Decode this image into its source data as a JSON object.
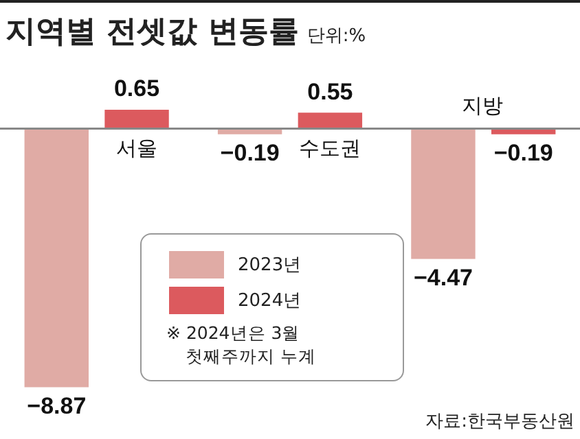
{
  "chart_data": {
    "type": "bar",
    "title": "지역별 전셋값 변동률",
    "subtitle": "단위:%",
    "categories": [
      "서울",
      "수도권",
      "지방"
    ],
    "series": [
      {
        "name": "2023년",
        "color": "#e0aba5",
        "values": [
          -8.87,
          -0.19,
          -4.47
        ]
      },
      {
        "name": "2024년",
        "color": "#dc5a5e",
        "values": [
          0.65,
          0.55,
          -0.19
        ]
      }
    ],
    "ylim": [
      -9,
      0.65
    ],
    "tick_labels": false,
    "legend": "bottom",
    "data_labels": true,
    "annotations": [
      "※ 2024년은 3월 첫째주까지 누계",
      "자료:한국부동산원"
    ]
  }
}
